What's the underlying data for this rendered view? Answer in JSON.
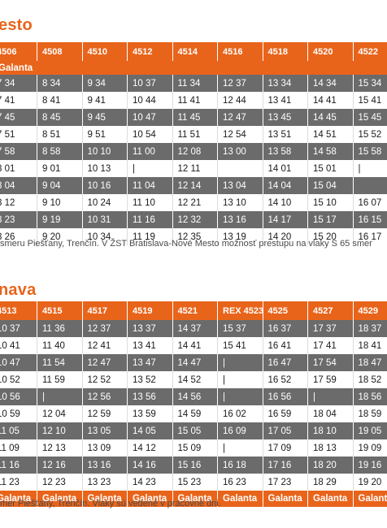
{
  "section1": {
    "title": "esto",
    "headers": [
      "4506",
      "4508",
      "4510",
      "4512",
      "4514",
      "4516",
      "4518",
      "4520",
      "4522"
    ],
    "station": "Galanta",
    "rows": [
      [
        "7 34",
        "8 34",
        "9 34",
        "10 37",
        "11 34",
        "12 37",
        "13 34",
        "14 34",
        "15 34"
      ],
      [
        "7 41",
        "8 41",
        "9 41",
        "10 44",
        "11 41",
        "12 44",
        "13 41",
        "14 41",
        "15 41"
      ],
      [
        "7 45",
        "8 45",
        "9 45",
        "10 47",
        "11 45",
        "12 47",
        "13 45",
        "14 45",
        "15 45"
      ],
      [
        "7 51",
        "8 51",
        "9 51",
        "10 54",
        "11 51",
        "12 54",
        "13 51",
        "14 51",
        "15 52"
      ],
      [
        "7 58",
        "8 58",
        "10 10",
        "11 00",
        "12 08",
        "13 00",
        "13 58",
        "14 58",
        "15 58"
      ],
      [
        "8 01",
        "9 01",
        "10 13",
        "|",
        "12 11",
        "",
        "14 01",
        "15 01",
        "|"
      ],
      [
        "8 04",
        "9 04",
        "10 16",
        "11 04",
        "12 14",
        "13 04",
        "14 04",
        "15 04",
        ""
      ],
      [
        "8 12",
        "9 10",
        "10 24",
        "11 10",
        "12 21",
        "13 10",
        "14 10",
        "15 10",
        "16 07"
      ],
      [
        "8 23",
        "9 19",
        "10 31",
        "11 16",
        "12 32",
        "13 16",
        "14 17",
        "15 17",
        "16 15"
      ],
      [
        "8 26",
        "9 20",
        "10 34",
        "11 19",
        "12 35",
        "13 19",
        "14 20",
        "15 20",
        "16 17"
      ]
    ],
    "note": "smeru Piešťany, Trenčín. V ŽST Bratislava-Nové Mesto možnosť prestupu na vlaky S 65 smer"
  },
  "section2": {
    "title": "nava",
    "headers": [
      "4513",
      "4515",
      "4517",
      "4519",
      "4521",
      "REX 4523",
      "4525",
      "4527",
      "4529"
    ],
    "rows": [
      [
        "10 37",
        "11 36",
        "12 37",
        "13 37",
        "14 37",
        "15 37",
        "16 37",
        "17 37",
        "18 37"
      ],
      [
        "10 41",
        "11 40",
        "12 41",
        "13 41",
        "14 41",
        "15 41",
        "16 41",
        "17 41",
        "18 41"
      ],
      [
        "10 47",
        "11 54",
        "12 47",
        "13 47",
        "14 47",
        "|",
        "16 47",
        "17 54",
        "18 47"
      ],
      [
        "10 52",
        "11 59",
        "12 52",
        "13 52",
        "14 52",
        "|",
        "16 52",
        "17 59",
        "18 52"
      ],
      [
        "10 56",
        "|",
        "12 56",
        "13 56",
        "14 56",
        "|",
        "16 56",
        "|",
        "18 56"
      ],
      [
        "10 59",
        "12 04",
        "12 59",
        "13 59",
        "14 59",
        "16 02",
        "16 59",
        "18 04",
        "18 59"
      ],
      [
        "11 05",
        "12 10",
        "13 05",
        "14 05",
        "15 05",
        "16 09",
        "17 05",
        "18 10",
        "19 05"
      ],
      [
        "11 09",
        "12 13",
        "13 09",
        "14 12",
        "15 09",
        "|",
        "17 09",
        "18 13",
        "19 09"
      ],
      [
        "11 16",
        "12 16",
        "13 16",
        "14 16",
        "15 16",
        "16 18",
        "17 16",
        "18 20",
        "19 16"
      ],
      [
        "11 23",
        "12 23",
        "13 23",
        "14 23",
        "15 23",
        "16 23",
        "17 23",
        "18 29",
        "19 20"
      ]
    ],
    "footer": [
      "Galanta",
      "Galanta",
      "Galanta",
      "Galanta",
      "Galanta",
      "Galanta",
      "Galanta",
      "Galanta",
      "Galanta"
    ],
    "note": "mer Piešťany, Trenčín. Vlaky sú vedené v pracovné dni."
  },
  "colors": {
    "accent": "#e8641b",
    "dark_row": "#6b6b6b",
    "light_row": "#ffffff",
    "note_text": "#4a4a4a"
  }
}
